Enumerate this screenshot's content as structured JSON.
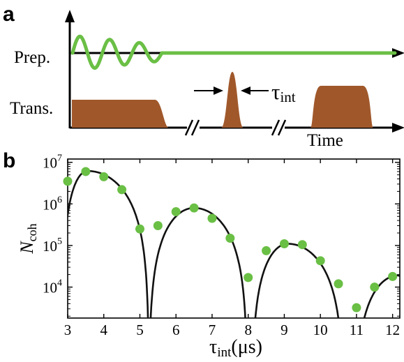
{
  "panel_a": {
    "letter": "a",
    "row_labels": [
      "Prep.",
      "Trans."
    ],
    "time_label": "Time",
    "tau_symbol": "τ",
    "tau_subscript": "int",
    "colors": {
      "prep": "#6abf45",
      "trans": "#a0582b",
      "axis": "#000000"
    }
  },
  "panel_b": {
    "letter": "b",
    "ylabel_main": "N",
    "ylabel_sub": "coh",
    "xlabel_symbol": "τ",
    "xlabel_sub": "int",
    "xlabel_unit": "(μs)",
    "ytick_base": "10",
    "yticks_exp": [
      "4",
      "5",
      "6",
      "7"
    ]
  },
  "chart_data": {
    "type": "scatter",
    "x_axis": {
      "label": "τint (μs)",
      "range": [
        3,
        12.2
      ],
      "ticks": [
        3,
        4,
        5,
        6,
        7,
        8,
        9,
        10,
        11,
        12
      ]
    },
    "y_axis": {
      "label": "Ncoh",
      "scale": "log",
      "range": [
        1800,
        12000000
      ],
      "ticks": [
        10000,
        100000,
        1000000,
        10000000
      ]
    },
    "points": {
      "x": [
        3.0,
        3.5,
        4.0,
        4.5,
        5.0,
        5.5,
        6.0,
        6.5,
        7.0,
        7.5,
        8.0,
        8.5,
        9.0,
        9.5,
        10.0,
        10.5,
        11.0,
        11.5,
        12.0
      ],
      "y": [
        3500000,
        6000000,
        4500000,
        2200000,
        250000,
        300000,
        650000,
        800000,
        450000,
        150000,
        17000,
        75000,
        110000,
        105000,
        43000,
        12000,
        3200,
        10000,
        18000
      ],
      "color": "#6abf45"
    },
    "fit_lobes": [
      {
        "x_start": 2.85,
        "x_end": 5.25,
        "peak_x": 3.55,
        "peak_y": 6200000
      },
      {
        "x_start": 5.25,
        "x_end": 7.98,
        "peak_x": 6.5,
        "peak_y": 800000
      },
      {
        "x_start": 8.1,
        "x_end": 10.65,
        "peak_x": 9.1,
        "peak_y": 110000
      },
      {
        "x_start": 10.95,
        "x_end": 12.6,
        "peak_x": 12.15,
        "peak_y": 19000
      }
    ],
    "fit_color": "#111111",
    "grid": false,
    "legend": "none"
  }
}
